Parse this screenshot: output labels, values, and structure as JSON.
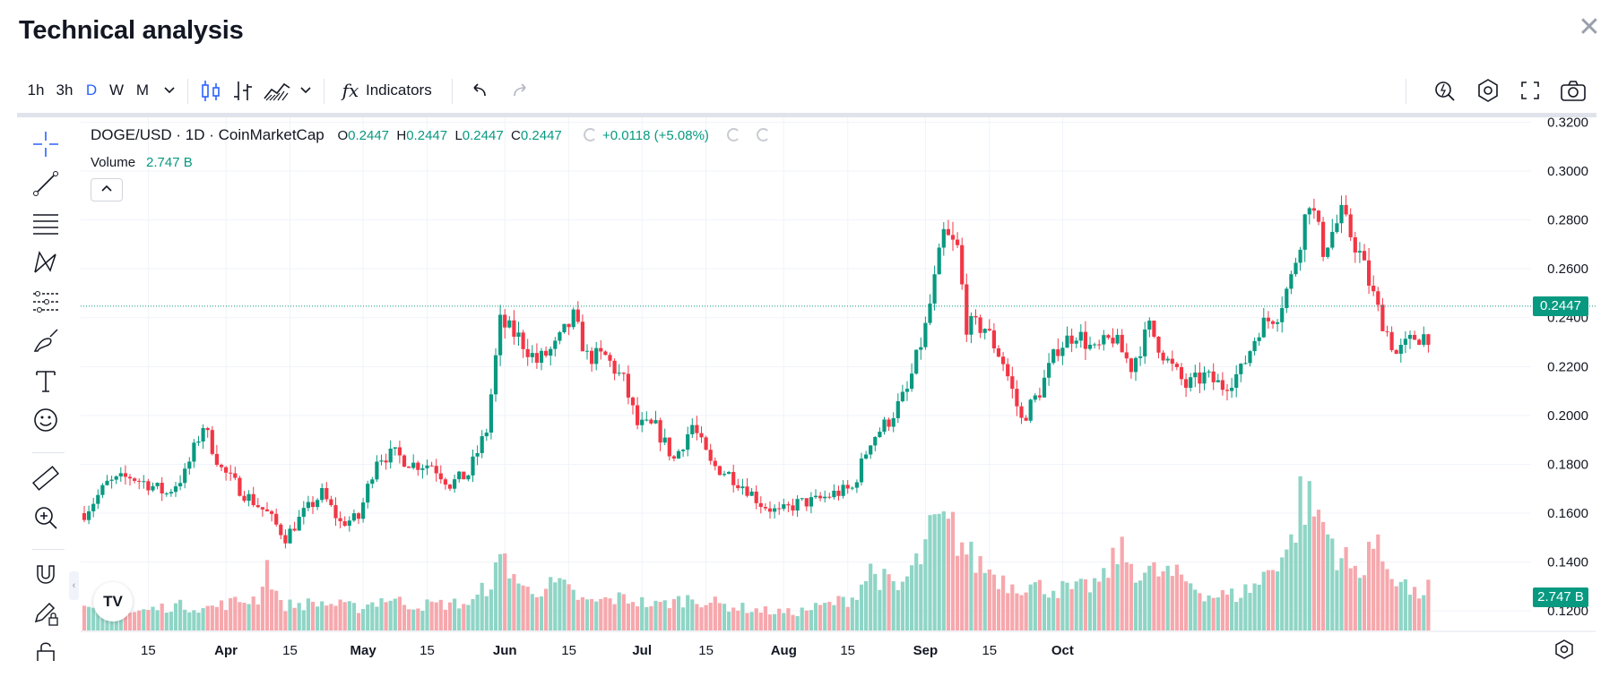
{
  "dialog": {
    "title": "Technical analysis",
    "close_label": "✕"
  },
  "toolbar": {
    "intervals": [
      "1h",
      "3h",
      "D",
      "W",
      "M"
    ],
    "active_interval": "D",
    "indicators_label": "Indicators",
    "fx_label": "fx"
  },
  "legend": {
    "symbol": "DOGE/USD · 1D · CoinMarketCap",
    "o_label": "O",
    "o_value": "0.2447",
    "h_label": "H",
    "h_value": "0.2447",
    "l_label": "L",
    "l_value": "0.2447",
    "c_label": "C",
    "c_value": "0.2447",
    "change": "+0.0118 (+5.08%)",
    "volume_label": "Volume",
    "volume_value": "2.747 B"
  },
  "price_label": "0.2447",
  "volume_tag": "2.747 B",
  "logo_text": "TV",
  "colors": {
    "up": "#089981",
    "down": "#f23645",
    "up_vol": "#8fd5c6",
    "down_vol": "#f6a8ad",
    "accent": "#2962ff",
    "grid": "#f0f3fa"
  },
  "chart_data": {
    "type": "candlestick",
    "symbol": "DOGE/USD",
    "interval": "1D",
    "ylim": [
      0.112,
      0.322
    ],
    "y_ticks": [
      "0.3200",
      "0.3000",
      "0.2800",
      "0.2600",
      "0.2400",
      "0.2200",
      "0.2000",
      "0.1800",
      "0.1600",
      "0.1400",
      "0.1200"
    ],
    "x_ticks": [
      "15",
      "Apr",
      "15",
      "May",
      "15",
      "Jun",
      "15",
      "Jul",
      "15",
      "Aug",
      "15",
      "Sep",
      "15",
      "Oct"
    ],
    "x_tick_days": [
      14,
      31,
      45,
      61,
      75,
      92,
      106,
      122,
      136,
      153,
      167,
      184,
      198,
      214
    ],
    "start_day": 0,
    "last_price": 0.2447,
    "close_anchors": [
      [
        0,
        0.16
      ],
      [
        5,
        0.172
      ],
      [
        10,
        0.175
      ],
      [
        14,
        0.172
      ],
      [
        18,
        0.168
      ],
      [
        22,
        0.176
      ],
      [
        26,
        0.196
      ],
      [
        30,
        0.178
      ],
      [
        35,
        0.168
      ],
      [
        40,
        0.16
      ],
      [
        44,
        0.15
      ],
      [
        48,
        0.16
      ],
      [
        52,
        0.168
      ],
      [
        56,
        0.156
      ],
      [
        60,
        0.158
      ],
      [
        64,
        0.183
      ],
      [
        68,
        0.184
      ],
      [
        72,
        0.18
      ],
      [
        76,
        0.18
      ],
      [
        80,
        0.172
      ],
      [
        84,
        0.176
      ],
      [
        88,
        0.194
      ],
      [
        91,
        0.238
      ],
      [
        95,
        0.232
      ],
      [
        99,
        0.222
      ],
      [
        103,
        0.228
      ],
      [
        107,
        0.24
      ],
      [
        110,
        0.224
      ],
      [
        114,
        0.224
      ],
      [
        118,
        0.214
      ],
      [
        121,
        0.196
      ],
      [
        125,
        0.195
      ],
      [
        129,
        0.182
      ],
      [
        133,
        0.196
      ],
      [
        137,
        0.18
      ],
      [
        141,
        0.176
      ],
      [
        145,
        0.17
      ],
      [
        148,
        0.164
      ],
      [
        152,
        0.16
      ],
      [
        156,
        0.164
      ],
      [
        160,
        0.165
      ],
      [
        164,
        0.168
      ],
      [
        168,
        0.17
      ],
      [
        172,
        0.19
      ],
      [
        176,
        0.198
      ],
      [
        180,
        0.21
      ],
      [
        184,
        0.236
      ],
      [
        188,
        0.274
      ],
      [
        191,
        0.268
      ],
      [
        193,
        0.237
      ],
      [
        197,
        0.236
      ],
      [
        201,
        0.222
      ],
      [
        205,
        0.198
      ],
      [
        209,
        0.21
      ],
      [
        213,
        0.228
      ],
      [
        217,
        0.234
      ],
      [
        221,
        0.226
      ],
      [
        225,
        0.232
      ],
      [
        229,
        0.22
      ],
      [
        233,
        0.236
      ],
      [
        237,
        0.222
      ],
      [
        241,
        0.212
      ],
      [
        245,
        0.216
      ],
      [
        249,
        0.212
      ],
      [
        253,
        0.218
      ],
      [
        257,
        0.236
      ],
      [
        261,
        0.242
      ],
      [
        264,
        0.256
      ],
      [
        268,
        0.289
      ],
      [
        271,
        0.268
      ],
      [
        275,
        0.282
      ],
      [
        279,
        0.266
      ],
      [
        283,
        0.243
      ],
      [
        287,
        0.225
      ],
      [
        291,
        0.232
      ],
      [
        294,
        0.2329
      ]
    ],
    "volume_ylim": [
      0,
      5
    ],
    "volume_anchors": [
      [
        0,
        0.8
      ],
      [
        10,
        0.7
      ],
      [
        20,
        1.0
      ],
      [
        27,
        0.9
      ],
      [
        32,
        1.1
      ],
      [
        38,
        1.3
      ],
      [
        40,
        2.6
      ],
      [
        43,
        1.0
      ],
      [
        52,
        1.1
      ],
      [
        60,
        0.9
      ],
      [
        66,
        1.3
      ],
      [
        72,
        1.0
      ],
      [
        85,
        1.1
      ],
      [
        89,
        2.0
      ],
      [
        92,
        2.9
      ],
      [
        96,
        1.6
      ],
      [
        104,
        1.8
      ],
      [
        110,
        1.1
      ],
      [
        118,
        1.3
      ],
      [
        125,
        1.0
      ],
      [
        133,
        1.3
      ],
      [
        140,
        1.0
      ],
      [
        148,
        0.8
      ],
      [
        155,
        0.7
      ],
      [
        162,
        1.0
      ],
      [
        168,
        1.3
      ],
      [
        172,
        2.4
      ],
      [
        178,
        1.6
      ],
      [
        183,
        2.9
      ],
      [
        186,
        4.2
      ],
      [
        190,
        4.0
      ],
      [
        194,
        2.9
      ],
      [
        202,
        1.9
      ],
      [
        210,
        1.7
      ],
      [
        217,
        1.6
      ],
      [
        223,
        2.0
      ],
      [
        226,
        3.2
      ],
      [
        231,
        2.3
      ],
      [
        236,
        2.3
      ],
      [
        241,
        2.0
      ],
      [
        246,
        1.4
      ],
      [
        252,
        1.4
      ],
      [
        257,
        1.9
      ],
      [
        261,
        2.9
      ],
      [
        264,
        3.4
      ],
      [
        266,
        5.3
      ],
      [
        270,
        4.6
      ],
      [
        274,
        3.2
      ],
      [
        279,
        2.1
      ],
      [
        281,
        3.6
      ],
      [
        285,
        2.6
      ],
      [
        291,
        1.4
      ],
      [
        294,
        1.7
      ]
    ]
  }
}
